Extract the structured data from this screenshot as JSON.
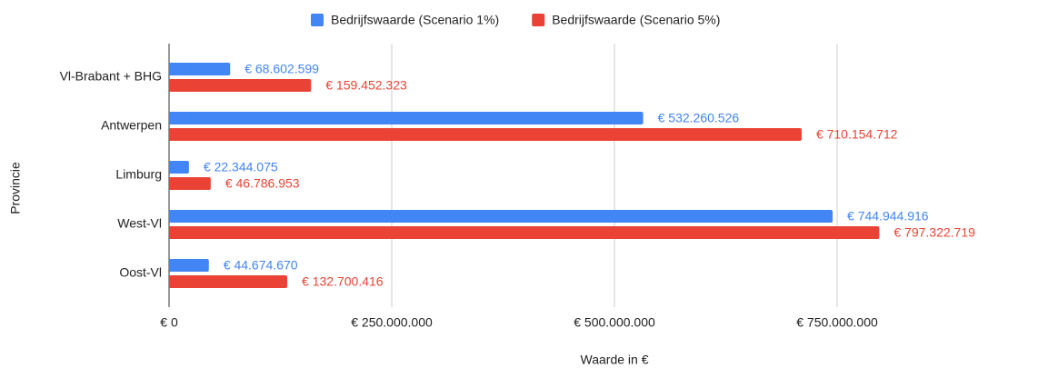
{
  "chart_data": {
    "type": "hbar",
    "categories": [
      "Vl-Brabant + BHG",
      "Antwerpen",
      "Limburg",
      "West-Vl",
      "Oost-Vl"
    ],
    "series": [
      {
        "name": "Bedrijfswaarde (Scenario 1%)",
        "color": "#4285f4",
        "values": [
          68602599,
          532260526,
          22344075,
          744944916,
          44674670
        ],
        "value_labels": [
          "€ 68.602.599",
          "€ 532.260.526",
          "€ 22.344.075",
          "€ 744.944.916",
          "€ 44.674.670"
        ]
      },
      {
        "name": "Bedrijfswaarde (Scenario 5%)",
        "color": "#ea4335",
        "values": [
          159452323,
          710154712,
          46786953,
          797322719,
          132700416
        ],
        "value_labels": [
          "€ 159.452.323",
          "€ 710.154.712",
          "€ 46.786.953",
          "€ 797.322.719",
          "€ 132.700.416"
        ]
      }
    ],
    "xlabel": "Waarde in €",
    "ylabel": "Provincie",
    "xlim": [
      0,
      950000000
    ],
    "xticks": [
      {
        "value": 0,
        "label": "€ 0"
      },
      {
        "value": 250000000,
        "label": "€ 250.000.000"
      },
      {
        "value": 500000000,
        "label": "€ 500.000.000"
      },
      {
        "value": 750000000,
        "label": "€ 750.000.000"
      }
    ],
    "grid": true,
    "legend": "top"
  }
}
